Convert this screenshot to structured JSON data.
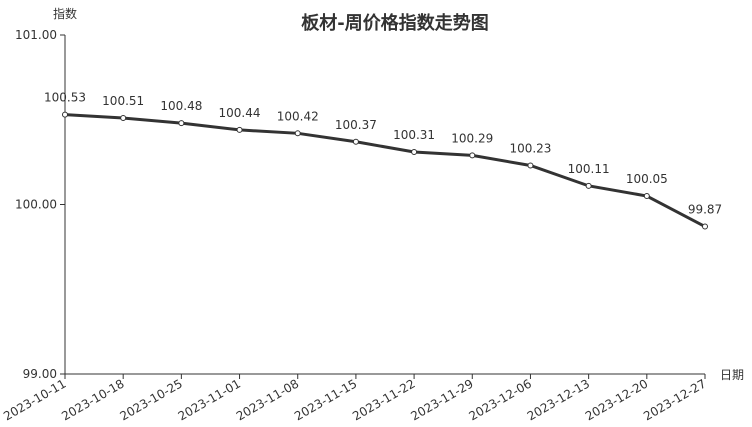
{
  "chart_data": {
    "type": "line",
    "title": "板材-周价格指数走势图",
    "xlabel": "日期",
    "ylabel": "指数",
    "ylim": [
      99,
      101
    ],
    "yticks": [
      "99.00",
      "100.00",
      "101.00"
    ],
    "grid": false,
    "line_color": "#333333",
    "categories": [
      "2023-10-11",
      "2023-10-18",
      "2023-10-25",
      "2023-11-01",
      "2023-11-08",
      "2023-11-15",
      "2023-11-22",
      "2023-11-29",
      "2023-12-06",
      "2023-12-13",
      "2023-12-20",
      "2023-12-27"
    ],
    "values": [
      100.53,
      100.51,
      100.48,
      100.44,
      100.42,
      100.37,
      100.31,
      100.29,
      100.23,
      100.11,
      100.05,
      99.87
    ]
  }
}
